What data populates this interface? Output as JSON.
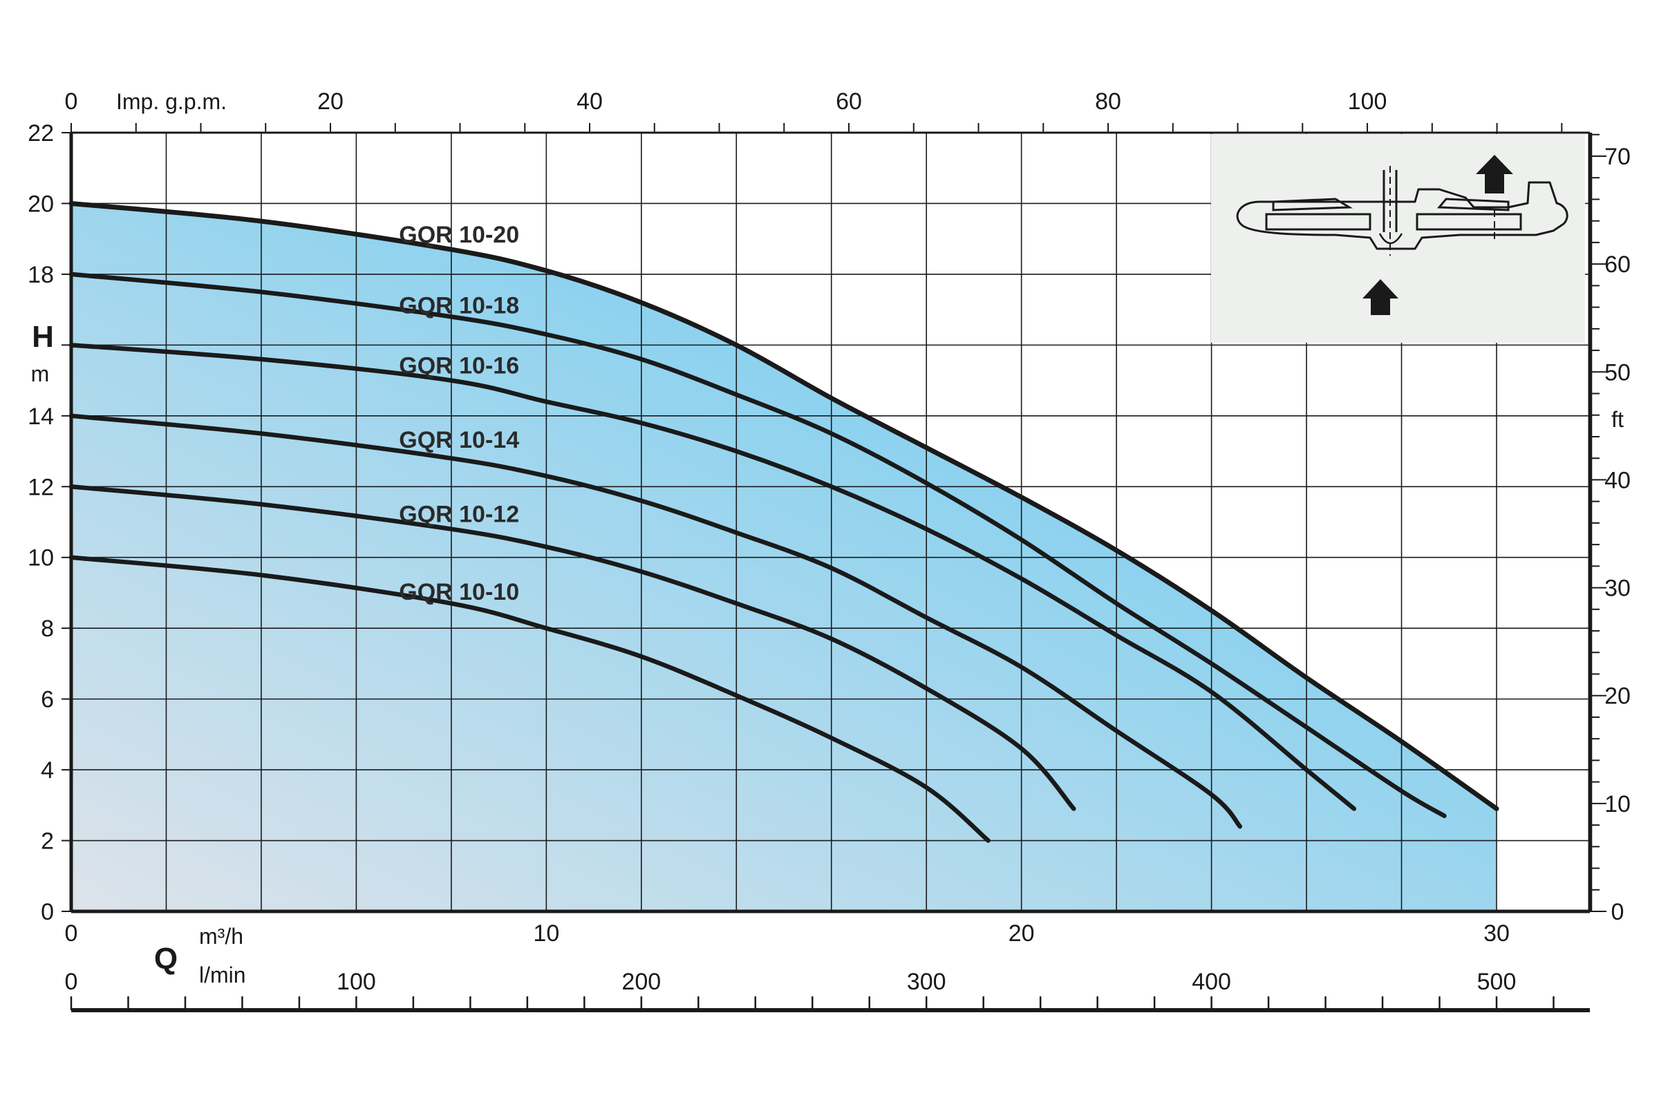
{
  "chart_data": {
    "type": "line",
    "axes": {
      "x_bottom": {
        "symbol": "Q",
        "unit": "m³/h",
        "ticks": [
          0,
          10,
          20,
          30
        ],
        "range": [
          0,
          32
        ]
      },
      "x_lpm": {
        "unit": "l/min",
        "ticks": [
          0,
          100,
          200,
          300,
          400,
          500
        ],
        "range": [
          0,
          533.3
        ]
      },
      "x_top": {
        "unit": "Imp. g.p.m.",
        "ticks": [
          0,
          20,
          40,
          60,
          80,
          100
        ],
        "range": [
          0,
          117.3
        ]
      },
      "y_left": {
        "symbol": "H",
        "unit": "m",
        "ticks": [
          0,
          2,
          4,
          6,
          8,
          10,
          12,
          14,
          18,
          20,
          22
        ],
        "range": [
          0,
          22
        ]
      },
      "y_right": {
        "unit": "ft",
        "ticks": [
          0,
          10,
          20,
          30,
          40,
          50,
          60,
          70
        ],
        "range": [
          0,
          72.2
        ]
      }
    },
    "grid": true,
    "series": [
      {
        "name": "GQR 10-20",
        "label_text": "GQR 10-20",
        "x": [
          0,
          4,
          8,
          10,
          12,
          14,
          16,
          18,
          20,
          22,
          24,
          26,
          28,
          30
        ],
        "y": [
          20,
          19.5,
          18.7,
          18.1,
          17.2,
          16,
          14.5,
          13.1,
          11.7,
          10.2,
          8.5,
          6.6,
          4.8,
          2.9
        ]
      },
      {
        "name": "GQR 10-18",
        "label_text": "GQR 10-18",
        "x": [
          0,
          4,
          8,
          10,
          12,
          14,
          16,
          18,
          20,
          22,
          24,
          26,
          28,
          28.9
        ],
        "y": [
          18,
          17.5,
          16.8,
          16.3,
          15.6,
          14.6,
          13.5,
          12.1,
          10.5,
          8.7,
          7,
          5.2,
          3.4,
          2.7
        ]
      },
      {
        "name": "GQR 10-16",
        "label_text": "GQR 10-16",
        "x": [
          0,
          4,
          8,
          10,
          12,
          14,
          16,
          18,
          20,
          22,
          24,
          26,
          27
        ],
        "y": [
          16,
          15.6,
          15,
          14.4,
          13.8,
          13,
          12,
          10.8,
          9.4,
          7.8,
          6.2,
          4,
          2.9
        ]
      },
      {
        "name": "GQR 10-14",
        "label_text": "GQR 10-14",
        "x": [
          0,
          4,
          8,
          10,
          12,
          14,
          16,
          18,
          20,
          22,
          24,
          24.6
        ],
        "y": [
          14,
          13.5,
          12.8,
          12.3,
          11.6,
          10.7,
          9.7,
          8.3,
          6.9,
          5.1,
          3.3,
          2.4
        ]
      },
      {
        "name": "GQR 10-12",
        "label_text": "GQR 10-12",
        "x": [
          0,
          4,
          8,
          10,
          12,
          14,
          16,
          18,
          20,
          21.1
        ],
        "y": [
          12,
          11.5,
          10.8,
          10.3,
          9.6,
          8.7,
          7.7,
          6.3,
          4.6,
          2.9
        ]
      },
      {
        "name": "GQR 10-10",
        "label_text": "GQR 10-10",
        "x": [
          0,
          4,
          8,
          10,
          12,
          14,
          16,
          18,
          19.3
        ],
        "y": [
          10,
          9.5,
          8.7,
          8,
          7.2,
          6.1,
          4.9,
          3.5,
          2
        ]
      }
    ],
    "series_label_positions": [
      {
        "x": 6.9,
        "y": 18.9
      },
      {
        "x": 6.9,
        "y": 16.9
      },
      {
        "x": 6.9,
        "y": 15.2
      },
      {
        "x": 6.9,
        "y": 13.1
      },
      {
        "x": 6.9,
        "y": 11.0
      },
      {
        "x": 6.9,
        "y": 8.8
      }
    ],
    "colors": {
      "fill_light": "#dde3ea",
      "fill_dark": "#5ec8f2",
      "curve": "#1a1a1a",
      "grid": "#1a1a1a",
      "inset_bg": "#eef0ee"
    },
    "inset": {
      "icon": "pump-cross-section-icon"
    }
  }
}
